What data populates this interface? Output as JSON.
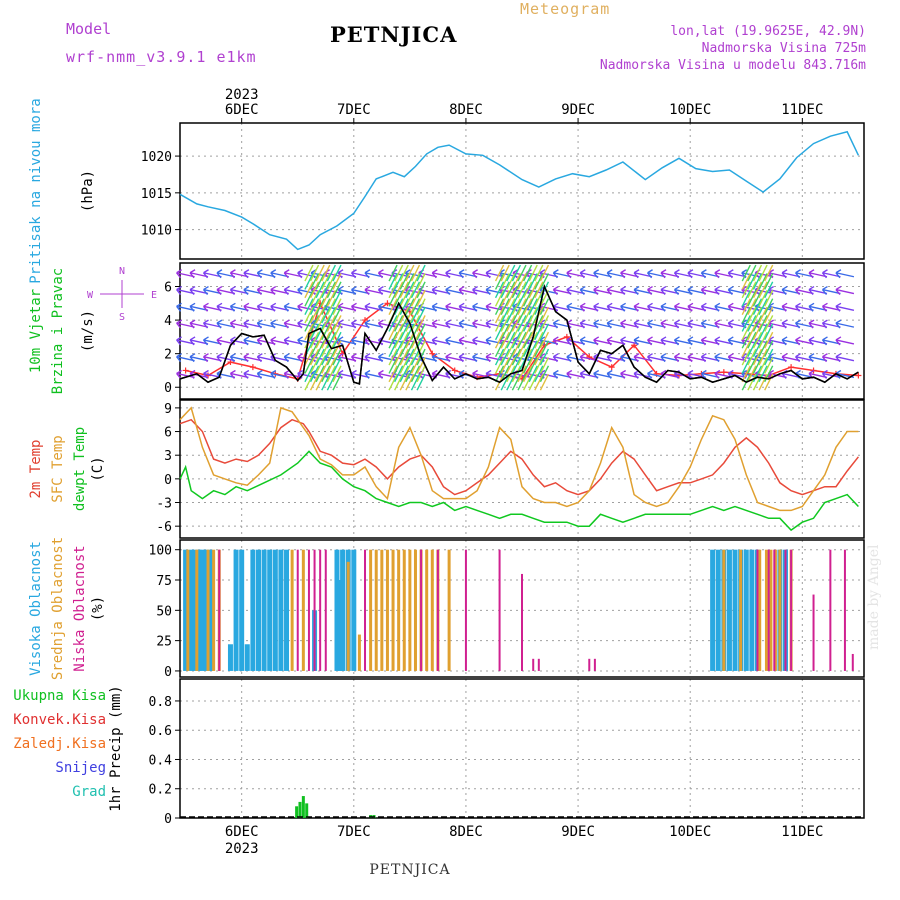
{
  "header": {
    "model_label": "Model",
    "model_name": "wrf-nmm_v3.9.1 e1km",
    "station": "PETNJICA",
    "product": "Meteogram",
    "location": "lon,lat (19.9625E, 42.9N)",
    "altitude": "Nadmorska Visina 725m",
    "model_altitude": "Nadmorska Visina u modelu 843.716m"
  },
  "footer_station": "PETNJICA",
  "signature": "made by Angel",
  "chart_data": [
    {
      "id": "pressure",
      "type": "line",
      "ylabel": [
        "Pritisak na nivou mora",
        "(hPa)"
      ],
      "ylabel_colors": [
        "#29a8e0",
        "#000000"
      ],
      "yticks": [
        1010,
        1015,
        1020
      ],
      "ylim": [
        1006,
        1024.5
      ],
      "x_days": [
        "6DEC",
        "7DEC",
        "8DEC",
        "9DEC",
        "10DEC",
        "11DEC"
      ],
      "top_year": "2023",
      "series": [
        {
          "color": "#29a8e0",
          "x": [
            -0.55,
            -0.4,
            -0.3,
            -0.15,
            0,
            0.1,
            0.25,
            0.4,
            0.5,
            0.6,
            0.7,
            0.85,
            1.0,
            1.1,
            1.2,
            1.35,
            1.45,
            1.55,
            1.65,
            1.75,
            1.85,
            2.0,
            2.15,
            2.3,
            2.5,
            2.65,
            2.8,
            2.95,
            3.1,
            3.25,
            3.4,
            3.6,
            3.75,
            3.9,
            4.05,
            4.2,
            4.35,
            4.5,
            4.65,
            4.8,
            4.95,
            5.1,
            5.25,
            5.4,
            5.5
          ],
          "y": [
            1014.8,
            1013.5,
            1013.1,
            1012.6,
            1011.7,
            1010.8,
            1009.3,
            1008.7,
            1007.3,
            1007.9,
            1009.3,
            1010.5,
            1012.2,
            1014.5,
            1016.9,
            1017.8,
            1017.2,
            1018.6,
            1020.3,
            1021.2,
            1021.5,
            1020.3,
            1020.1,
            1018.8,
            1016.8,
            1015.8,
            1016.9,
            1017.6,
            1017.2,
            1018.1,
            1019.2,
            1016.8,
            1018.4,
            1019.7,
            1018.3,
            1017.9,
            1018.1,
            1016.6,
            1015.1,
            1016.9,
            1019.8,
            1021.7,
            1022.7,
            1023.3,
            1020.1
          ]
        }
      ]
    },
    {
      "id": "wind",
      "type": "line",
      "ylabel": [
        "10m Vjetar",
        "Brzina i Pravac",
        "(m/s)"
      ],
      "ylabel_colors": [
        "#10c020",
        "#10c020",
        "#000000"
      ],
      "compass": {
        "top": "N",
        "left": "W",
        "right": "E",
        "bottom": "S"
      },
      "yticks": [
        0,
        2,
        4,
        6
      ],
      "ylim": [
        -0.7,
        7.4
      ],
      "series": [
        {
          "name": "speed",
          "color": "#000000",
          "x": [
            -0.55,
            -0.4,
            -0.3,
            -0.2,
            -0.1,
            0,
            0.1,
            0.2,
            0.3,
            0.4,
            0.5,
            0.55,
            0.6,
            0.7,
            0.8,
            0.9,
            1.0,
            1.05,
            1.1,
            1.2,
            1.3,
            1.4,
            1.5,
            1.6,
            1.7,
            1.8,
            1.9,
            2.0,
            2.1,
            2.2,
            2.3,
            2.4,
            2.5,
            2.6,
            2.7,
            2.8,
            2.9,
            3.0,
            3.1,
            3.2,
            3.3,
            3.4,
            3.5,
            3.6,
            3.7,
            3.8,
            3.9,
            4.0,
            4.1,
            4.2,
            4.3,
            4.4,
            4.5,
            4.6,
            4.7,
            4.8,
            4.9,
            5.0,
            5.1,
            5.2,
            5.3,
            5.4,
            5.5
          ],
          "y": [
            0.5,
            0.8,
            0.3,
            0.6,
            2.5,
            3.2,
            3.0,
            3.1,
            1.6,
            1.2,
            0.4,
            0.8,
            3.2,
            3.5,
            2.3,
            2.5,
            0.3,
            0.2,
            3.2,
            2.2,
            3.5,
            5.0,
            3.8,
            1.8,
            0.4,
            1.2,
            0.5,
            0.8,
            0.5,
            0.6,
            0.3,
            0.8,
            1.0,
            3.0,
            6.0,
            4.5,
            4.0,
            1.5,
            0.8,
            2.2,
            2.0,
            2.5,
            1.2,
            0.6,
            0.3,
            1.0,
            0.9,
            0.5,
            0.6,
            0.3,
            0.5,
            0.7,
            0.3,
            0.6,
            0.5,
            0.8,
            1.0,
            0.5,
            0.6,
            0.3,
            0.8,
            0.5,
            0.9
          ]
        },
        {
          "name": "gust",
          "color": "#ff3030",
          "x": [
            -0.5,
            -0.3,
            -0.1,
            0.1,
            0.3,
            0.5,
            0.7,
            0.9,
            1.1,
            1.3,
            1.5,
            1.7,
            1.9,
            2.1,
            2.3,
            2.5,
            2.7,
            2.9,
            3.1,
            3.3,
            3.5,
            3.7,
            3.9,
            4.1,
            4.3,
            4.5,
            4.7,
            4.9,
            5.1,
            5.3,
            5.5
          ],
          "y": [
            1.0,
            0.7,
            1.5,
            1.2,
            0.8,
            0.5,
            5.0,
            2.0,
            4.0,
            5.0,
            4.5,
            2.0,
            1.0,
            0.6,
            0.8,
            0.5,
            2.5,
            3.0,
            1.8,
            1.2,
            2.5,
            0.8,
            0.7,
            0.8,
            0.9,
            0.8,
            0.7,
            1.2,
            1.0,
            0.8,
            0.7
          ]
        }
      ]
    },
    {
      "id": "temperature",
      "type": "line",
      "ylabel": [
        "2m Temp",
        "SFC Temp",
        "dewpt Temp",
        "(C)"
      ],
      "ylabel_colors": [
        "#e04030",
        "#e0a030",
        "#10c020",
        "#000000"
      ],
      "yticks": [
        -6,
        -3,
        0,
        3,
        6,
        9
      ],
      "ylim": [
        -7.5,
        10
      ],
      "series": [
        {
          "name": "2m Temp",
          "color": "#e84a3a",
          "x": [
            -0.55,
            -0.45,
            -0.35,
            -0.25,
            -0.15,
            -0.05,
            0.05,
            0.15,
            0.25,
            0.35,
            0.45,
            0.55,
            0.6,
            0.7,
            0.8,
            0.9,
            1.0,
            1.1,
            1.2,
            1.3,
            1.4,
            1.5,
            1.6,
            1.7,
            1.8,
            1.9,
            2.0,
            2.1,
            2.2,
            2.3,
            2.4,
            2.5,
            2.6,
            2.7,
            2.8,
            2.9,
            3.0,
            3.1,
            3.2,
            3.3,
            3.4,
            3.5,
            3.6,
            3.7,
            3.8,
            3.9,
            4.0,
            4.1,
            4.2,
            4.3,
            4.4,
            4.5,
            4.6,
            4.7,
            4.8,
            4.9,
            5.0,
            5.1,
            5.2,
            5.3,
            5.4,
            5.5
          ],
          "y": [
            7.0,
            7.5,
            6.0,
            2.5,
            2.0,
            2.5,
            2.2,
            3.0,
            4.5,
            6.5,
            7.5,
            7.0,
            6.0,
            3.5,
            3.0,
            2.0,
            1.8,
            2.5,
            1.5,
            0.0,
            1.5,
            2.5,
            3.0,
            1.5,
            -1.0,
            -2.0,
            -1.5,
            -0.5,
            0.5,
            2.0,
            3.5,
            2.5,
            0.5,
            -1.0,
            -0.5,
            -1.5,
            -2.0,
            -1.5,
            0.0,
            2.0,
            3.5,
            2.5,
            0.5,
            -1.5,
            -1.0,
            -0.5,
            -0.5,
            0.0,
            0.5,
            2.0,
            4.0,
            5.2,
            4.0,
            2.0,
            -0.5,
            -1.5,
            -2.0,
            -1.5,
            -1.0,
            -1.0,
            1.0,
            2.8
          ]
        },
        {
          "name": "SFC Temp",
          "color": "#e0a030",
          "x": [
            -0.55,
            -0.45,
            -0.35,
            -0.25,
            -0.15,
            -0.05,
            0.05,
            0.15,
            0.25,
            0.35,
            0.45,
            0.55,
            0.6,
            0.7,
            0.8,
            0.9,
            1.0,
            1.1,
            1.2,
            1.3,
            1.4,
            1.5,
            1.6,
            1.7,
            1.8,
            1.9,
            2.0,
            2.1,
            2.2,
            2.3,
            2.4,
            2.5,
            2.6,
            2.7,
            2.8,
            2.9,
            3.0,
            3.1,
            3.2,
            3.3,
            3.4,
            3.5,
            3.6,
            3.7,
            3.8,
            3.9,
            4.0,
            4.1,
            4.2,
            4.3,
            4.4,
            4.5,
            4.6,
            4.7,
            4.8,
            4.9,
            5.0,
            5.1,
            5.2,
            5.3,
            5.4,
            5.5
          ],
          "y": [
            7.5,
            9.0,
            4.0,
            0.5,
            0.0,
            -0.5,
            -0.8,
            0.5,
            2.0,
            9.0,
            8.5,
            6.5,
            5.5,
            2.5,
            1.8,
            0.5,
            0.5,
            1.5,
            -1.0,
            -2.5,
            4.0,
            6.5,
            3.0,
            -1.5,
            -2.5,
            -2.5,
            -2.5,
            -1.5,
            1.5,
            6.5,
            5.0,
            -1.0,
            -2.5,
            -3.0,
            -3.0,
            -3.5,
            -3.0,
            -1.5,
            2.0,
            6.5,
            4.0,
            -2.0,
            -3.0,
            -3.5,
            -3.0,
            -1.0,
            1.5,
            5.0,
            8.0,
            7.5,
            5.0,
            0.5,
            -3.0,
            -3.5,
            -4.0,
            -4.0,
            -3.5,
            -1.5,
            0.5,
            4.0,
            6.0,
            6.0
          ]
        },
        {
          "name": "dewpt Temp",
          "color": "#10c820",
          "x": [
            -0.55,
            -0.5,
            -0.45,
            -0.4,
            -0.35,
            -0.25,
            -0.15,
            -0.05,
            0.05,
            0.2,
            0.35,
            0.5,
            0.6,
            0.7,
            0.8,
            0.9,
            1.0,
            1.1,
            1.2,
            1.3,
            1.4,
            1.5,
            1.6,
            1.7,
            1.8,
            1.9,
            2.0,
            2.1,
            2.2,
            2.3,
            2.4,
            2.5,
            2.6,
            2.7,
            2.8,
            2.9,
            3.0,
            3.1,
            3.2,
            3.3,
            3.4,
            3.5,
            3.6,
            3.7,
            3.8,
            3.9,
            4.0,
            4.1,
            4.2,
            4.3,
            4.4,
            4.5,
            4.6,
            4.7,
            4.8,
            4.9,
            5.0,
            5.1,
            5.2,
            5.3,
            5.4,
            5.5
          ],
          "y": [
            0.0,
            1.5,
            -1.5,
            -2.0,
            -2.5,
            -1.5,
            -2.0,
            -1.0,
            -1.5,
            -0.5,
            0.5,
            2.0,
            3.5,
            2.0,
            1.5,
            0.0,
            -1.0,
            -1.5,
            -2.5,
            -3.0,
            -3.5,
            -3.0,
            -3.0,
            -3.5,
            -3.0,
            -4.0,
            -3.5,
            -4.0,
            -4.5,
            -5.0,
            -4.5,
            -4.5,
            -5.0,
            -5.5,
            -5.5,
            -5.5,
            -6.0,
            -6.0,
            -4.5,
            -5.0,
            -5.5,
            -5.0,
            -4.5,
            -4.5,
            -4.5,
            -4.5,
            -4.5,
            -4.0,
            -3.5,
            -4.0,
            -3.5,
            -4.0,
            -4.5,
            -5.0,
            -5.0,
            -6.5,
            -5.5,
            -5.0,
            -3.0,
            -2.5,
            -2.0,
            -3.5
          ]
        }
      ]
    },
    {
      "id": "clouds",
      "type": "bar",
      "ylabel": [
        "Visoka Oblacnost",
        "Srednja Oblacnost",
        "Niska Oblacnost",
        "(%)"
      ],
      "ylabel_colors": [
        "#29a8e0",
        "#e0a030",
        "#d02090",
        "#000000"
      ],
      "yticks": [
        0,
        25,
        50,
        75,
        100
      ],
      "ylim": [
        -5,
        108
      ],
      "series": [
        {
          "name": "Visoka Oblacnost",
          "color": "#29a8e0",
          "x": [
            -0.5,
            -0.45,
            -0.42,
            -0.38,
            -0.35,
            -0.32,
            -0.28,
            -0.1,
            -0.05,
            0.0,
            0.05,
            0.1,
            0.15,
            0.2,
            0.25,
            0.3,
            0.35,
            0.4,
            0.65,
            0.85,
            0.88,
            0.9,
            0.95,
            1.0,
            4.2,
            4.25,
            4.3,
            4.35,
            4.4,
            4.45,
            4.5,
            4.55,
            4.6,
            4.8,
            4.85
          ],
          "y": [
            100,
            100,
            100,
            100,
            100,
            100,
            100,
            22,
            100,
            100,
            22,
            100,
            100,
            100,
            100,
            100,
            100,
            100,
            50,
            100,
            75,
            100,
            100,
            100,
            100,
            100,
            100,
            100,
            100,
            100,
            100,
            100,
            100,
            100,
            100
          ]
        },
        {
          "name": "Srednja Oblacnost",
          "color": "#e0a030",
          "x": [
            -0.48,
            -0.4,
            -0.3,
            -0.25,
            -0.2,
            0.45,
            0.55,
            0.95,
            1.05,
            1.15,
            1.2,
            1.25,
            1.3,
            1.35,
            1.4,
            1.45,
            1.5,
            1.55,
            1.6,
            1.65,
            1.7,
            1.75,
            1.85,
            4.3,
            4.45,
            4.62,
            4.68,
            4.72,
            4.76,
            4.8,
            4.9
          ],
          "y": [
            100,
            100,
            100,
            100,
            100,
            100,
            100,
            90,
            30,
            100,
            100,
            100,
            100,
            100,
            100,
            100,
            100,
            100,
            100,
            100,
            100,
            100,
            100,
            100,
            100,
            100,
            100,
            100,
            100,
            100,
            100
          ]
        },
        {
          "name": "Niska Oblacnost",
          "color": "#d02090",
          "x": [
            -0.2,
            0.5,
            0.6,
            0.65,
            0.7,
            0.75,
            1.1,
            1.6,
            1.75,
            2.0,
            2.3,
            2.5,
            2.6,
            2.65,
            3.1,
            3.15,
            4.6,
            4.7,
            4.75,
            4.85,
            4.9,
            5.1,
            5.25,
            5.38,
            5.45
          ],
          "y": [
            100,
            100,
            100,
            100,
            100,
            100,
            100,
            100,
            100,
            100,
            100,
            80,
            10,
            10,
            10,
            10,
            100,
            100,
            100,
            100,
            100,
            63,
            100,
            100,
            14
          ]
        }
      ]
    },
    {
      "id": "precip",
      "type": "bar",
      "ylabel": [
        "1hr Precip (mm)"
      ],
      "ylabel_colors": [
        "#000000"
      ],
      "legend": [
        {
          "name": "Ukupna Kisa",
          "color": "#10c020"
        },
        {
          "name": "Konvek.Kisa",
          "color": "#e03030"
        },
        {
          "name": "Zaledj.Kisa",
          "color": "#f07020"
        },
        {
          "name": "Snijeg",
          "color": "#4040e0"
        },
        {
          "name": "Grad",
          "color": "#20c0b0"
        }
      ],
      "yticks": [
        0,
        0.2,
        0.4,
        0.6,
        0.8
      ],
      "ylim": [
        0,
        0.95
      ],
      "x_days": [
        "6DEC",
        "7DEC",
        "8DEC",
        "9DEC",
        "10DEC",
        "11DEC"
      ],
      "bottom_year": "2023",
      "series": [
        {
          "name": "Ukupna Kisa",
          "color": "#10c020",
          "x": [
            0.49,
            0.52,
            0.55,
            0.58,
            1.15,
            1.18
          ],
          "y": [
            0.08,
            0.11,
            0.15,
            0.1,
            0.02,
            0.02
          ]
        }
      ]
    }
  ]
}
